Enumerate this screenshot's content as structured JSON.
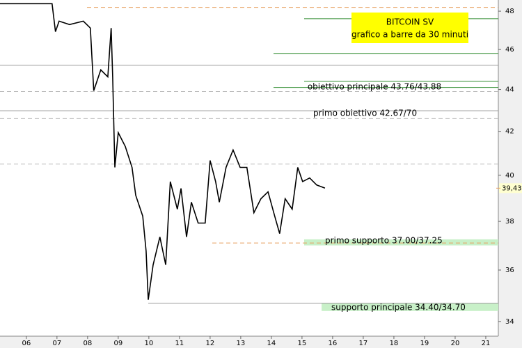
{
  "chart_data": {
    "type": "line",
    "title": "BITCOIN SV",
    "subtitle": "grafico a barre da 30 minuti",
    "color": "#000000",
    "log_scale": true,
    "x": [
      5.14,
      6.05,
      6.84,
      6.95,
      7.07,
      7.41,
      7.86,
      8.09,
      8.2,
      8.43,
      8.66,
      8.77,
      8.82,
      8.89,
      9.0,
      9.23,
      9.45,
      9.57,
      9.8,
      9.91,
      9.98,
      10.14,
      10.36,
      10.55,
      10.7,
      10.93,
      11.05,
      11.23,
      11.39,
      11.61,
      11.84,
      12.0,
      12.18,
      12.3,
      12.52,
      12.75,
      12.98,
      13.2,
      13.43,
      13.66,
      13.89,
      14.11,
      14.27,
      14.45,
      14.68,
      14.86,
      15.02,
      15.25,
      15.48,
      15.75
    ],
    "values": [
      48.4,
      48.4,
      48.4,
      46.92,
      47.47,
      47.29,
      47.47,
      47.11,
      43.94,
      44.97,
      44.62,
      47.11,
      44.62,
      40.35,
      41.94,
      41.3,
      40.35,
      39.12,
      38.22,
      36.77,
      34.83,
      36.21,
      37.35,
      36.21,
      39.72,
      38.52,
      39.42,
      37.35,
      38.82,
      37.93,
      37.93,
      40.66,
      39.72,
      38.82,
      40.35,
      41.14,
      40.35,
      40.35,
      38.37,
      38.97,
      39.27,
      38.22,
      37.49,
      38.97,
      38.52,
      40.35,
      39.72,
      39.88,
      39.57,
      39.43
    ],
    "last_price": {
      "value": 39.43,
      "label": "39,43"
    },
    "xlim": [
      5.14,
      21.41
    ],
    "ylim": [
      33.45,
      48.6
    ],
    "xticks": [
      {
        "value": 6,
        "label": "06"
      },
      {
        "value": 7,
        "label": "07"
      },
      {
        "value": 8,
        "label": "08"
      },
      {
        "value": 9,
        "label": "09"
      },
      10,
      11,
      12,
      13,
      14,
      15,
      16,
      17,
      18,
      19,
      20,
      21
    ],
    "yticks": [
      34,
      36,
      38,
      40,
      42,
      44,
      46,
      48
    ],
    "levels": [
      {
        "value": 48.2,
        "from": 7.98,
        "color": "#e8a060",
        "dashed": true
      },
      {
        "value": 47.6,
        "from": 15.07,
        "color": "#2e8b2e",
        "dashed": false
      },
      {
        "value": 45.8,
        "from": 14.07,
        "color": "#2e8b2e",
        "dashed": false
      },
      {
        "value": 45.2,
        "from": 5.14,
        "color": "#999999",
        "dashed": false
      },
      {
        "value": 44.4,
        "from": 15.07,
        "color": "#2e8b2e",
        "dashed": false
      },
      {
        "value": 44.1,
        "from": 14.07,
        "color": "#2e8b2e",
        "dashed": false
      },
      {
        "value": 43.9,
        "from": 5.14,
        "color": "#bbbbbb",
        "dashed": true
      },
      {
        "value": 42.97,
        "from": 5.14,
        "color": "#999999",
        "dashed": false
      },
      {
        "value": 42.6,
        "from": 5.14,
        "color": "#bbbbbb",
        "dashed": true
      },
      {
        "value": 40.5,
        "from": 5.14,
        "color": "#bbbbbb",
        "dashed": true
      },
      {
        "value": 37.1,
        "from": 12.07,
        "color": "#e8a060",
        "dashed": true
      },
      {
        "value": 34.7,
        "from": 9.98,
        "color": "#999999",
        "dashed": false
      }
    ],
    "bands": [
      {
        "from_value": 37.0,
        "to_value": 37.25,
        "from": 15.07,
        "color": "#c8f0c8"
      },
      {
        "from_value": 34.4,
        "to_value": 34.7,
        "from": 15.64,
        "color": "#c8f0c8"
      }
    ],
    "annotations": [
      "obiettivo principale 43.76/43.88",
      "primo obiettivo 42.67/70",
      "primo supporto 37.00/37.25",
      "supporto principale 34.40/34.70"
    ]
  }
}
